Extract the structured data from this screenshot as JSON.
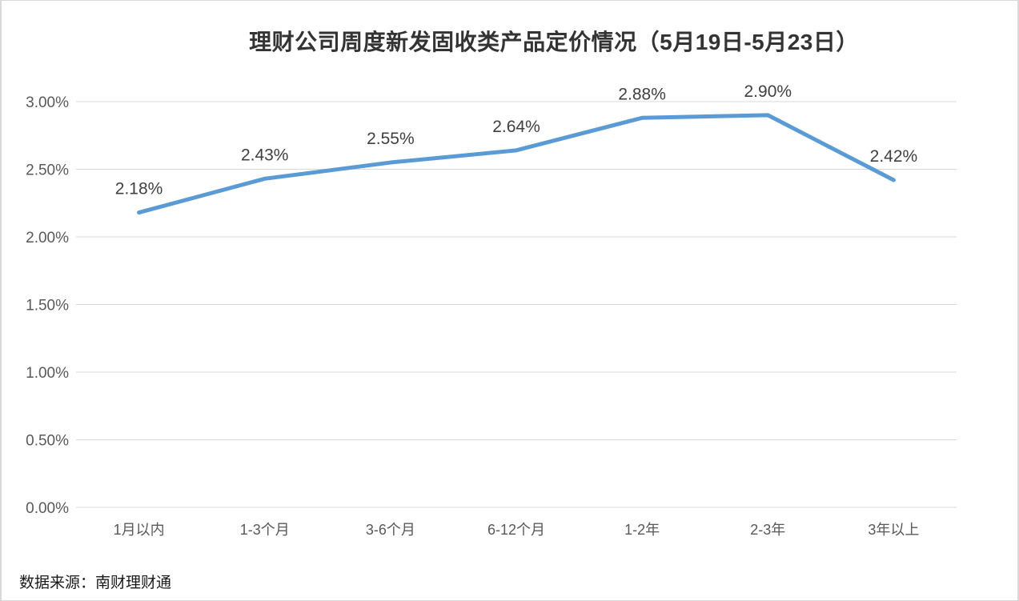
{
  "chart": {
    "title": "理财公司周度新发固收类产品定价情况（5月19日-5月23日）",
    "source": "数据来源：南财理财通",
    "colors": {
      "line": "#5B9BD5",
      "gridline": "#d9d9d9",
      "axis_label": "#595959",
      "data_label": "#404040",
      "title": "#333333",
      "background": "#ffffff",
      "border": "#d9d9d9"
    }
  },
  "chart_data": {
    "type": "line",
    "title": "理财公司周度新发固收类产品定价情况（5月19日-5月23日）",
    "categories": [
      "1月以内",
      "1-3个月",
      "3-6个月",
      "6-12个月",
      "1-2年",
      "2-3年",
      "3年以上"
    ],
    "values": [
      2.18,
      2.43,
      2.55,
      2.64,
      2.88,
      2.9,
      2.42
    ],
    "point_labels": [
      "2.18%",
      "2.43%",
      "2.55%",
      "2.64%",
      "2.88%",
      "2.90%",
      "2.42%"
    ],
    "xlabel": "",
    "ylabel": "",
    "ylim": [
      0,
      3.0
    ],
    "yticks": [
      0,
      0.5,
      1.0,
      1.5,
      2.0,
      2.5,
      3.0
    ],
    "ytick_labels": [
      "0.00%",
      "0.50%",
      "1.00%",
      "1.50%",
      "2.00%",
      "2.50%",
      "3.00%"
    ],
    "grid": true,
    "legend": "none",
    "source": "数据来源：南财理财通"
  }
}
